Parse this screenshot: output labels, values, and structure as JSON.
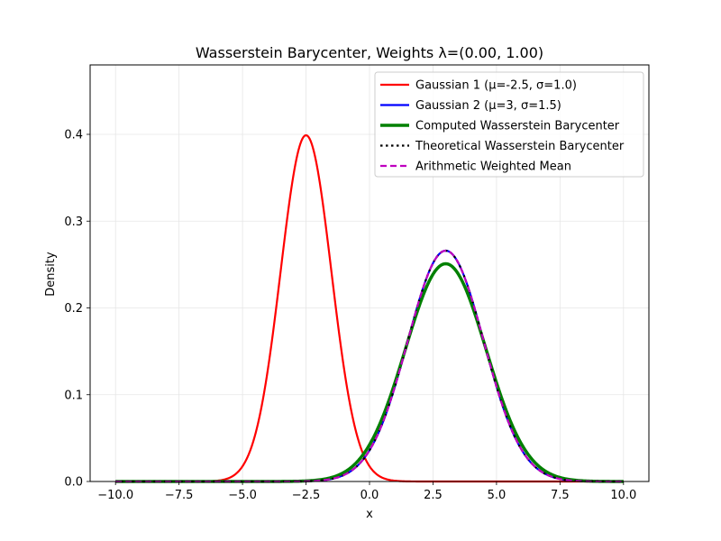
{
  "chart_data": {
    "type": "line",
    "title": "Wasserstein Barycenter, Weights λ=(0.00, 1.00)",
    "xlabel": "x",
    "ylabel": "Density",
    "xlim": [
      -11.0,
      11.0
    ],
    "ylim": [
      0,
      0.48
    ],
    "x_ticks": [
      -10.0,
      -7.5,
      -5.0,
      -2.5,
      0.0,
      2.5,
      5.0,
      7.5,
      10.0
    ],
    "x_tick_labels": [
      "−10.0",
      "−7.5",
      "−5.0",
      "−2.5",
      "0.0",
      "2.5",
      "5.0",
      "7.5",
      "10.0"
    ],
    "y_ticks": [
      0.0,
      0.1,
      0.2,
      0.3,
      0.4
    ],
    "y_tick_labels": [
      "0.0",
      "0.1",
      "0.2",
      "0.3",
      "0.4"
    ],
    "grid": true,
    "legend_position": "upper right",
    "x_range": [
      -10,
      10
    ],
    "series": [
      {
        "name": "Gaussian 1 (μ=-2.5, σ=1.0)",
        "distribution": "normal",
        "mu": -2.5,
        "sigma": 1.0,
        "color": "#ff0000",
        "style": "solid"
      },
      {
        "name": "Gaussian 2 (μ=3, σ=1.5)",
        "distribution": "normal",
        "mu": 3.0,
        "sigma": 1.5,
        "color": "#0000ff",
        "style": "solid"
      },
      {
        "name": "Computed Wasserstein Barycenter",
        "distribution": "normal",
        "mu": 3.0,
        "sigma": 1.59,
        "color": "#008000",
        "style": "solid-thick"
      },
      {
        "name": "Theoretical Wasserstein Barycenter",
        "distribution": "normal",
        "mu": 3.0,
        "sigma": 1.5,
        "color": "#000000",
        "style": "dotted"
      },
      {
        "name": "Arithmetic Weighted Mean",
        "distribution": "normal",
        "mu": 3.0,
        "sigma": 1.5,
        "color": "#bf00bf",
        "style": "dashed"
      }
    ]
  }
}
